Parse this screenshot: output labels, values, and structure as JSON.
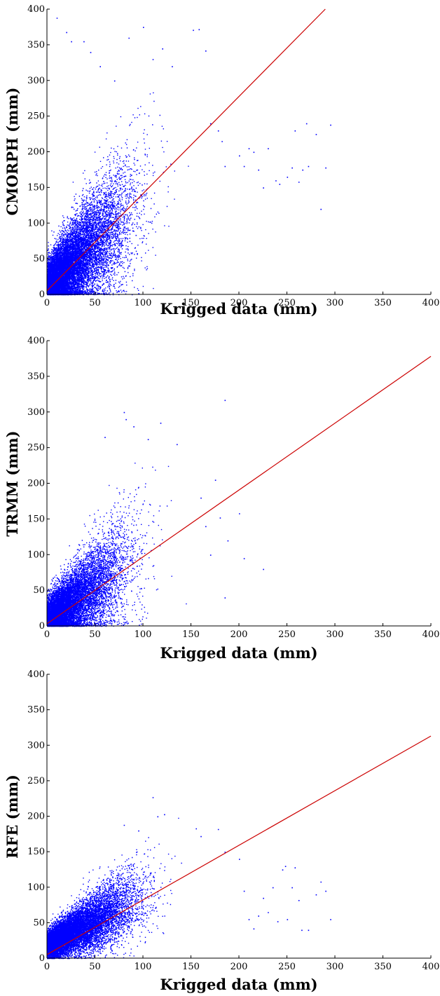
{
  "chart_data": [
    {
      "type": "scatter",
      "xlabel": "Krigged data (mm)",
      "ylabel": "CMORPH (mm)",
      "xlim": [
        0,
        400
      ],
      "ylim": [
        0,
        400
      ],
      "xticks": [
        0,
        50,
        100,
        150,
        200,
        250,
        300,
        350,
        400
      ],
      "yticks": [
        0,
        50,
        100,
        150,
        200,
        250,
        300,
        350,
        400
      ],
      "grid": false,
      "marker_color": "#0000ff",
      "fit_line": {
        "color": "#cc0000",
        "x": [
          0,
          290
        ],
        "y": [
          5,
          400
        ]
      },
      "cloud": {
        "x_mean": 30,
        "x_sd": 30,
        "y_slope": 1.25,
        "y_intercept": 10,
        "y_noise": 38
      },
      "outliers": [
        [
          10,
          388
        ],
        [
          20,
          368
        ],
        [
          25,
          355
        ],
        [
          38,
          355
        ],
        [
          45,
          340
        ],
        [
          55,
          320
        ],
        [
          70,
          300
        ],
        [
          85,
          360
        ],
        [
          100,
          375
        ],
        [
          110,
          330
        ],
        [
          120,
          345
        ],
        [
          130,
          320
        ],
        [
          152,
          371
        ],
        [
          158,
          372
        ],
        [
          165,
          342
        ],
        [
          170,
          240
        ],
        [
          178,
          230
        ],
        [
          182,
          215
        ],
        [
          185,
          180
        ],
        [
          200,
          195
        ],
        [
          205,
          180
        ],
        [
          210,
          205
        ],
        [
          215,
          200
        ],
        [
          220,
          175
        ],
        [
          225,
          150
        ],
        [
          238,
          160
        ],
        [
          242,
          155
        ],
        [
          250,
          165
        ],
        [
          255,
          178
        ],
        [
          262,
          158
        ],
        [
          266,
          175
        ],
        [
          272,
          180
        ],
        [
          280,
          225
        ],
        [
          285,
          120
        ],
        [
          290,
          178
        ],
        [
          295,
          238
        ],
        [
          258,
          230
        ],
        [
          270,
          240
        ],
        [
          230,
          205
        ]
      ]
    },
    {
      "type": "scatter",
      "xlabel": "Krigged data (mm)",
      "ylabel": "TRMM (mm)",
      "xlim": [
        0,
        400
      ],
      "ylim": [
        0,
        400
      ],
      "xticks": [
        0,
        50,
        100,
        150,
        200,
        250,
        300,
        350,
        400
      ],
      "yticks": [
        0,
        50,
        100,
        150,
        200,
        250,
        300,
        350,
        400
      ],
      "grid": false,
      "marker_color": "#0000ff",
      "fit_line": {
        "color": "#cc0000",
        "x": [
          0,
          400
        ],
        "y": [
          3,
          378
        ]
      },
      "cloud": {
        "x_mean": 30,
        "x_sd": 28,
        "y_slope": 0.95,
        "y_intercept": 8,
        "y_noise": 32
      },
      "outliers": [
        [
          60,
          265
        ],
        [
          80,
          300
        ],
        [
          82,
          290
        ],
        [
          90,
          280
        ],
        [
          105,
          262
        ],
        [
          118,
          285
        ],
        [
          135,
          255
        ],
        [
          175,
          205
        ],
        [
          180,
          152
        ],
        [
          185,
          317
        ],
        [
          188,
          120
        ],
        [
          185,
          40
        ],
        [
          200,
          158
        ],
        [
          205,
          95
        ],
        [
          225,
          80
        ],
        [
          160,
          180
        ],
        [
          165,
          140
        ],
        [
          170,
          100
        ]
      ]
    },
    {
      "type": "scatter",
      "xlabel": "Krigged data (mm)",
      "ylabel": "RFE (mm)",
      "xlim": [
        0,
        400
      ],
      "ylim": [
        0,
        400
      ],
      "xticks": [
        0,
        50,
        100,
        150,
        200,
        250,
        300,
        350,
        400
      ],
      "yticks": [
        0,
        50,
        100,
        150,
        200,
        250,
        300,
        350,
        400
      ],
      "grid": false,
      "marker_color": "#0000ff",
      "fit_line": {
        "color": "#cc0000",
        "x": [
          0,
          400
        ],
        "y": [
          5,
          313
        ]
      },
      "cloud": {
        "x_mean": 35,
        "x_sd": 30,
        "y_slope": 0.72,
        "y_intercept": 18,
        "y_noise": 20
      },
      "outliers": [
        [
          110,
          227
        ],
        [
          115,
          200
        ],
        [
          122,
          203
        ],
        [
          80,
          188
        ],
        [
          95,
          180
        ],
        [
          155,
          183
        ],
        [
          160,
          172
        ],
        [
          178,
          182
        ],
        [
          185,
          150
        ],
        [
          200,
          140
        ],
        [
          205,
          95
        ],
        [
          210,
          55
        ],
        [
          215,
          42
        ],
        [
          225,
          85
        ],
        [
          230,
          65
        ],
        [
          240,
          52
        ],
        [
          245,
          125
        ],
        [
          250,
          55
        ],
        [
          255,
          100
        ],
        [
          262,
          82
        ],
        [
          265,
          40
        ],
        [
          272,
          40
        ],
        [
          280,
          90
        ],
        [
          285,
          108
        ],
        [
          290,
          95
        ],
        [
          295,
          55
        ],
        [
          248,
          130
        ],
        [
          258,
          128
        ],
        [
          220,
          60
        ],
        [
          235,
          100
        ]
      ]
    }
  ]
}
